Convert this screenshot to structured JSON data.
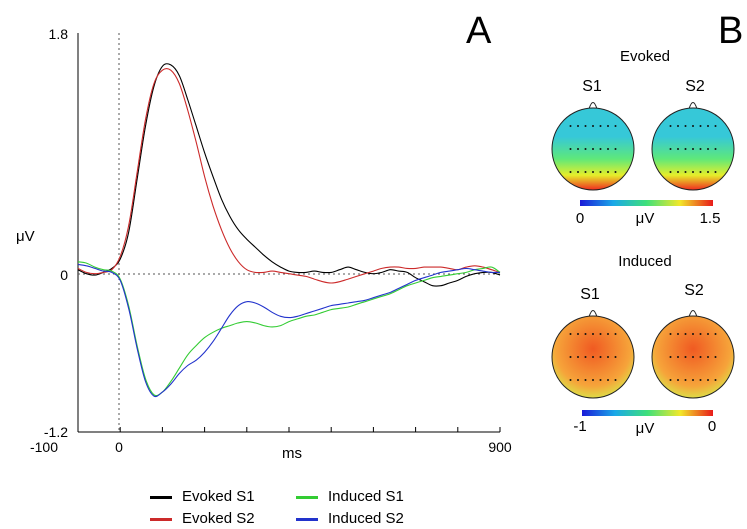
{
  "figure": {
    "panel_a_label": "A",
    "panel_b_label": "B"
  },
  "chart_data": [
    {
      "type": "line",
      "title": "",
      "xlabel": "ms",
      "ylabel": "μV",
      "xlim": [
        -100,
        900
      ],
      "ylim": [
        -1.2,
        1.8
      ],
      "x_ticks": [
        -100,
        0,
        900
      ],
      "y_ticks": [
        1.8,
        0,
        -1.2
      ],
      "grid": false,
      "legend_placement": "bottom",
      "zero_lines": true,
      "x": [
        -100,
        -80,
        -60,
        -40,
        -20,
        0,
        20,
        40,
        60,
        80,
        100,
        120,
        140,
        160,
        180,
        200,
        220,
        240,
        260,
        280,
        300,
        320,
        340,
        360,
        380,
        400,
        420,
        440,
        460,
        480,
        500,
        520,
        540,
        560,
        580,
        600,
        620,
        640,
        660,
        680,
        700,
        720,
        740,
        760,
        780,
        800,
        820,
        840,
        860,
        880,
        900
      ],
      "series": [
        {
          "name": "Evoked S1",
          "color": "#000000",
          "values": [
            0.02,
            -0.01,
            -0.02,
            0.0,
            0.03,
            0.1,
            0.3,
            0.7,
            1.1,
            1.4,
            1.55,
            1.56,
            1.48,
            1.3,
            1.1,
            0.9,
            0.72,
            0.55,
            0.42,
            0.32,
            0.25,
            0.19,
            0.13,
            0.08,
            0.04,
            0.01,
            0.0,
            0.0,
            0.01,
            0.0,
            0.0,
            0.02,
            0.04,
            0.02,
            0.0,
            -0.01,
            0.0,
            0.02,
            0.01,
            0.0,
            -0.04,
            -0.07,
            -0.1,
            -0.1,
            -0.08,
            -0.06,
            -0.03,
            -0.01,
            0.0,
            0.0,
            -0.02
          ]
        },
        {
          "name": "Evoked S2",
          "color": "#cc2a2a",
          "values": [
            0.03,
            0.0,
            -0.01,
            0.0,
            0.02,
            0.12,
            0.35,
            0.75,
            1.15,
            1.42,
            1.52,
            1.52,
            1.42,
            1.22,
            0.98,
            0.72,
            0.5,
            0.32,
            0.18,
            0.08,
            0.02,
            0.0,
            0.0,
            0.01,
            0.0,
            -0.01,
            -0.02,
            -0.03,
            -0.05,
            -0.07,
            -0.08,
            -0.07,
            -0.05,
            -0.03,
            -0.01,
            0.01,
            0.03,
            0.04,
            0.04,
            0.03,
            0.03,
            0.04,
            0.04,
            0.04,
            0.03,
            0.02,
            0.04,
            0.05,
            0.04,
            0.02,
            0.0
          ]
        },
        {
          "name": "Induced S1",
          "color": "#33cc33",
          "values": [
            0.08,
            0.07,
            0.04,
            0.02,
            0.01,
            -0.05,
            -0.25,
            -0.55,
            -0.8,
            -0.92,
            -0.9,
            -0.82,
            -0.72,
            -0.62,
            -0.55,
            -0.49,
            -0.45,
            -0.42,
            -0.4,
            -0.38,
            -0.37,
            -0.38,
            -0.4,
            -0.41,
            -0.4,
            -0.37,
            -0.35,
            -0.33,
            -0.32,
            -0.3,
            -0.28,
            -0.27,
            -0.26,
            -0.24,
            -0.22,
            -0.2,
            -0.18,
            -0.16,
            -0.13,
            -0.1,
            -0.08,
            -0.06,
            -0.04,
            -0.03,
            -0.02,
            -0.01,
            0.0,
            0.02,
            0.03,
            0.04,
            0.0
          ]
        },
        {
          "name": "Induced S2",
          "color": "#2233cc",
          "values": [
            0.06,
            0.05,
            0.03,
            0.01,
            0.0,
            -0.06,
            -0.27,
            -0.57,
            -0.82,
            -0.93,
            -0.9,
            -0.84,
            -0.76,
            -0.7,
            -0.66,
            -0.6,
            -0.52,
            -0.42,
            -0.32,
            -0.25,
            -0.22,
            -0.23,
            -0.26,
            -0.3,
            -0.33,
            -0.34,
            -0.33,
            -0.31,
            -0.29,
            -0.27,
            -0.25,
            -0.24,
            -0.23,
            -0.22,
            -0.21,
            -0.19,
            -0.17,
            -0.15,
            -0.12,
            -0.09,
            -0.06,
            -0.04,
            -0.02,
            0.0,
            0.01,
            0.02,
            0.03,
            0.02,
            0.01,
            0.0,
            0.0
          ]
        }
      ]
    },
    {
      "type": "heatmap",
      "title": "Evoked",
      "heads": [
        "S1",
        "S2"
      ],
      "colorbar": {
        "min_label": "0",
        "max_label": "1.5",
        "unit": "μV",
        "range": [
          0,
          1.5
        ]
      },
      "colors": {
        "top": "#36c8d8",
        "middle": "#5ee87a",
        "lower": "#e6ee2a",
        "bottom": "#f02a20"
      }
    },
    {
      "type": "heatmap",
      "title": "Induced",
      "heads": [
        "S1",
        "S2"
      ],
      "colorbar": {
        "min_label": "-1",
        "max_label": "0",
        "unit": "μV",
        "range": [
          -1,
          0
        ]
      },
      "colors": {
        "center": "#f05a22",
        "outer": "#f6a43a",
        "bottom": "#d6ee4a"
      }
    }
  ]
}
